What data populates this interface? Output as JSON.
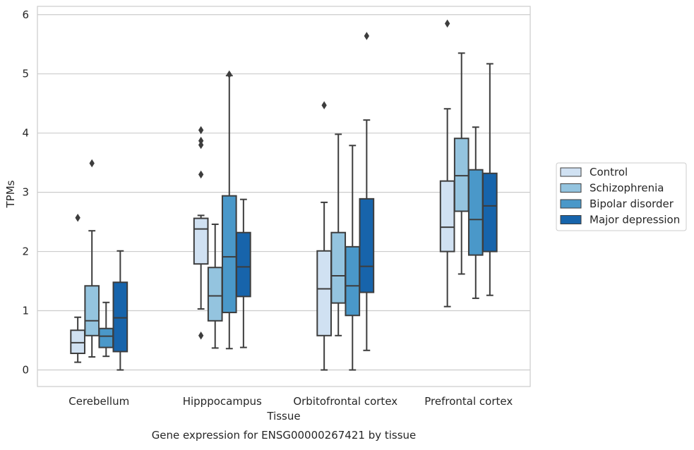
{
  "caption": "Gene expression for ENSG00000267421 by tissue",
  "chart_data": {
    "type": "box",
    "title": "",
    "xlabel": "Tissue",
    "ylabel": "TPMs",
    "ylim": [
      -0.28,
      6.14
    ],
    "yticks": [
      0,
      1,
      2,
      3,
      4,
      5,
      6
    ],
    "grid": true,
    "legend_position": "right",
    "categories": [
      "Cerebellum",
      "Hipppocampus",
      "Orbitofrontal cortex",
      "Prefrontal cortex"
    ],
    "series": [
      {
        "name": "Control",
        "color": "#d0e1f2",
        "boxes": [
          {
            "whislo": 0.13,
            "q1": 0.28,
            "med": 0.46,
            "q3": 0.67,
            "whishi": 0.89,
            "fliers": [
              2.57
            ]
          },
          {
            "whislo": 1.03,
            "q1": 1.79,
            "med": 2.38,
            "q3": 2.56,
            "whishi": 2.61,
            "fliers": [
              4.05,
              3.87,
              3.8,
              3.3,
              0.58
            ]
          },
          {
            "whislo": 0.0,
            "q1": 0.58,
            "med": 1.37,
            "q3": 2.01,
            "whishi": 2.83,
            "fliers": [
              4.47
            ]
          },
          {
            "whislo": 1.07,
            "q1": 2.0,
            "med": 2.41,
            "q3": 3.19,
            "whishi": 4.41,
            "fliers": [
              5.85
            ]
          }
        ]
      },
      {
        "name": "Schizophrenia",
        "color": "#94c4df",
        "boxes": [
          {
            "whislo": 0.22,
            "q1": 0.58,
            "med": 0.83,
            "q3": 1.42,
            "whishi": 2.35,
            "fliers": [
              3.49
            ]
          },
          {
            "whislo": 0.37,
            "q1": 0.83,
            "med": 1.25,
            "q3": 1.73,
            "whishi": 2.46,
            "fliers": []
          },
          {
            "whislo": 0.58,
            "q1": 1.13,
            "med": 1.59,
            "q3": 2.32,
            "whishi": 3.98,
            "fliers": []
          },
          {
            "whislo": 1.62,
            "q1": 2.68,
            "med": 3.28,
            "q3": 3.91,
            "whishi": 5.35,
            "fliers": []
          }
        ]
      },
      {
        "name": "Bipolar disorder",
        "color": "#4a98c9",
        "boxes": [
          {
            "whislo": 0.23,
            "q1": 0.38,
            "med": 0.57,
            "q3": 0.7,
            "whishi": 1.14,
            "fliers": []
          },
          {
            "whislo": 0.36,
            "q1": 0.97,
            "med": 1.91,
            "q3": 2.94,
            "whishi": 4.97,
            "fliers": [
              4.99
            ]
          },
          {
            "whislo": 0.0,
            "q1": 0.92,
            "med": 1.42,
            "q3": 2.08,
            "whishi": 3.79,
            "fliers": []
          },
          {
            "whislo": 1.21,
            "q1": 1.94,
            "med": 2.54,
            "q3": 3.38,
            "whishi": 4.1,
            "fliers": []
          }
        ]
      },
      {
        "name": "Major depression",
        "color": "#1764ab",
        "boxes": [
          {
            "whislo": 0.0,
            "q1": 0.31,
            "med": 0.88,
            "q3": 1.48,
            "whishi": 2.01,
            "fliers": []
          },
          {
            "whislo": 0.38,
            "q1": 1.24,
            "med": 1.74,
            "q3": 2.32,
            "whishi": 2.88,
            "fliers": []
          },
          {
            "whislo": 0.33,
            "q1": 1.31,
            "med": 1.75,
            "q3": 2.89,
            "whishi": 4.22,
            "fliers": [
              5.64
            ]
          },
          {
            "whislo": 1.26,
            "q1": 2.0,
            "med": 2.77,
            "q3": 3.32,
            "whishi": 5.17,
            "fliers": []
          }
        ]
      }
    ]
  }
}
